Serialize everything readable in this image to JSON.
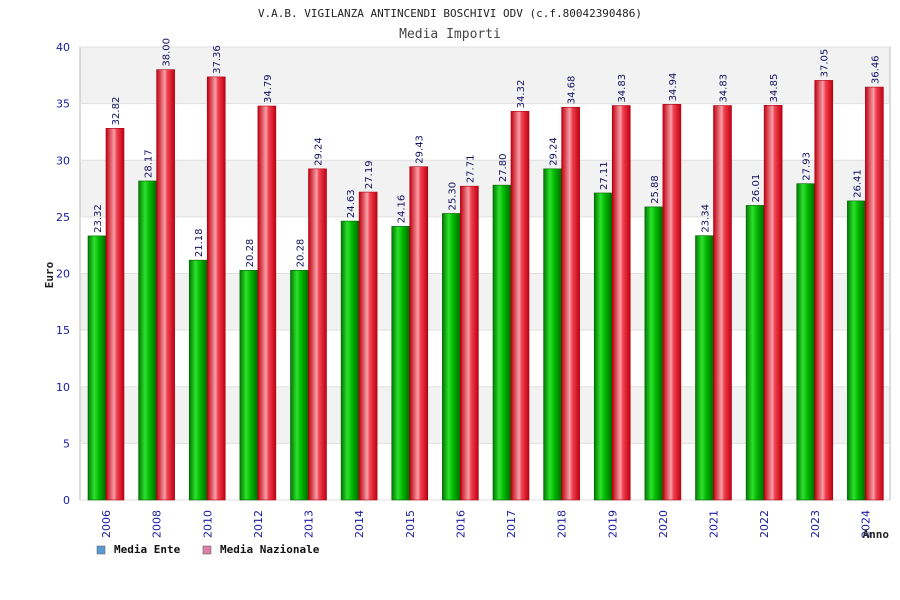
{
  "chart_data": {
    "type": "bar",
    "title": "V.A.B. VIGILANZA ANTINCENDI BOSCHIVI ODV (c.f.80042390486)",
    "subtitle": "Media Importi",
    "xlabel": "Anno",
    "ylabel": "Euro",
    "ylim": [
      0,
      40
    ],
    "yticks": [
      "0",
      "5",
      "10",
      "15",
      "20",
      "25",
      "30",
      "35",
      "40"
    ],
    "grid": true,
    "legend_position": "bottom-left",
    "categories": [
      "2006",
      "2008",
      "2010",
      "2012",
      "2013",
      "2014",
      "2015",
      "2016",
      "2017",
      "2018",
      "2019",
      "2020",
      "2021",
      "2022",
      "2023",
      "2024"
    ],
    "series": [
      {
        "name": "Media Ente",
        "color": "#00aa00",
        "legend_color": "#5b9bd5",
        "values": [
          23.32,
          28.17,
          21.18,
          20.28,
          20.28,
          24.63,
          24.16,
          25.3,
          27.8,
          29.24,
          27.11,
          25.88,
          23.34,
          26.01,
          27.93,
          26.41
        ],
        "labels": [
          "23.32",
          "28.17",
          "21.18",
          "20.28",
          "20.28",
          "24.63",
          "24.16",
          "25.30",
          "27.80",
          "29.24",
          "27.11",
          "25.88",
          "23.34",
          "26.01",
          "27.93",
          "26.41"
        ]
      },
      {
        "name": "Media Nazionale",
        "color": "#e8001c",
        "legend_color": "#d97fa8",
        "values": [
          32.82,
          38.0,
          37.36,
          34.79,
          29.24,
          27.19,
          29.43,
          27.71,
          34.32,
          34.68,
          34.83,
          34.94,
          34.83,
          34.85,
          37.05,
          36.46
        ],
        "labels": [
          "32.82",
          "38.00",
          "37.36",
          "34.79",
          "29.24",
          "27.19",
          "29.43",
          "27.71",
          "34.32",
          "34.68",
          "34.83",
          "34.94",
          "34.83",
          "34.85",
          "37.05",
          "36.46"
        ]
      }
    ]
  }
}
